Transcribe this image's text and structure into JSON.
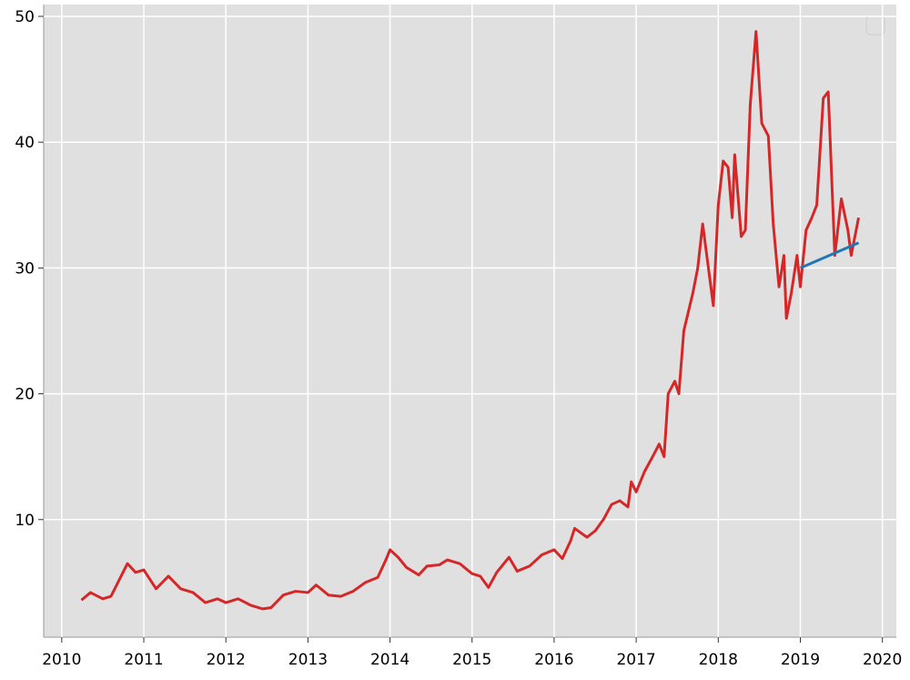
{
  "chart_data": {
    "type": "line",
    "xlim": [
      2009.78,
      2020.17
    ],
    "ylim": [
      0.65,
      50.94
    ],
    "xticks": [
      2010,
      2011,
      2012,
      2013,
      2014,
      2015,
      2016,
      2017,
      2018,
      2019,
      2020
    ],
    "yticks": [
      10,
      20,
      30,
      40,
      50
    ],
    "grid": true,
    "series": [
      {
        "color": "#d62728",
        "x": [
          2010.24,
          2010.35,
          2010.5,
          2010.6,
          2010.7,
          2010.8,
          2010.9,
          2011.0,
          2011.15,
          2011.3,
          2011.45,
          2011.6,
          2011.75,
          2011.9,
          2012.0,
          2012.15,
          2012.3,
          2012.45,
          2012.55,
          2012.7,
          2012.85,
          2013.0,
          2013.1,
          2013.25,
          2013.4,
          2013.55,
          2013.7,
          2013.85,
          2013.95,
          2014.0,
          2014.1,
          2014.2,
          2014.35,
          2014.45,
          2014.6,
          2014.7,
          2014.85,
          2015.0,
          2015.1,
          2015.2,
          2015.3,
          2015.45,
          2015.55,
          2015.7,
          2015.85,
          2016.0,
          2016.1,
          2016.2,
          2016.25,
          2016.4,
          2016.5,
          2016.6,
          2016.7,
          2016.8,
          2016.9,
          2016.94,
          2017.0,
          2017.1,
          2017.2,
          2017.28,
          2017.34,
          2017.39,
          2017.47,
          2017.52,
          2017.58,
          2017.69,
          2017.75,
          2017.81,
          2017.86,
          2017.94,
          2018.0,
          2018.06,
          2018.12,
          2018.17,
          2018.2,
          2018.28,
          2018.33,
          2018.39,
          2018.46,
          2018.53,
          2018.61,
          2018.67,
          2018.74,
          2018.8,
          2018.83,
          2018.89,
          2018.96,
          2019.0,
          2019.07,
          2019.14,
          2019.2,
          2019.28,
          2019.34,
          2019.42,
          2019.5,
          2019.58,
          2019.62,
          2019.71
        ],
        "values": [
          3.6,
          4.2,
          3.7,
          3.9,
          5.2,
          6.5,
          5.8,
          6.0,
          4.5,
          5.5,
          4.5,
          4.2,
          3.4,
          3.7,
          3.4,
          3.7,
          3.2,
          2.9,
          3.0,
          4.0,
          4.3,
          4.2,
          4.8,
          4.0,
          3.9,
          4.3,
          5.0,
          5.4,
          6.8,
          7.6,
          7.0,
          6.2,
          5.6,
          6.3,
          6.4,
          6.8,
          6.5,
          5.7,
          5.5,
          4.6,
          5.8,
          7.0,
          5.9,
          6.3,
          7.2,
          7.6,
          6.9,
          8.3,
          9.3,
          8.6,
          9.1,
          10.0,
          11.2,
          11.5,
          11.0,
          13.0,
          12.2,
          13.8,
          15.0,
          16.0,
          15.0,
          20.0,
          21.0,
          20.0,
          25.0,
          28.0,
          30.0,
          33.5,
          31.0,
          27.0,
          35.0,
          38.5,
          38.0,
          34.0,
          39.0,
          32.5,
          33.0,
          43.0,
          48.8,
          41.5,
          40.5,
          33.5,
          28.5,
          31.0,
          26.0,
          28.0,
          31.0,
          28.5,
          33.0,
          34.0,
          35.0,
          43.5,
          44.0,
          31.0,
          35.5,
          33.0,
          31.0,
          34.0
        ]
      },
      {
        "color": "#1f77b4",
        "x": [
          2019.0,
          2019.71
        ],
        "values": [
          30.0,
          32.0
        ]
      }
    ]
  }
}
